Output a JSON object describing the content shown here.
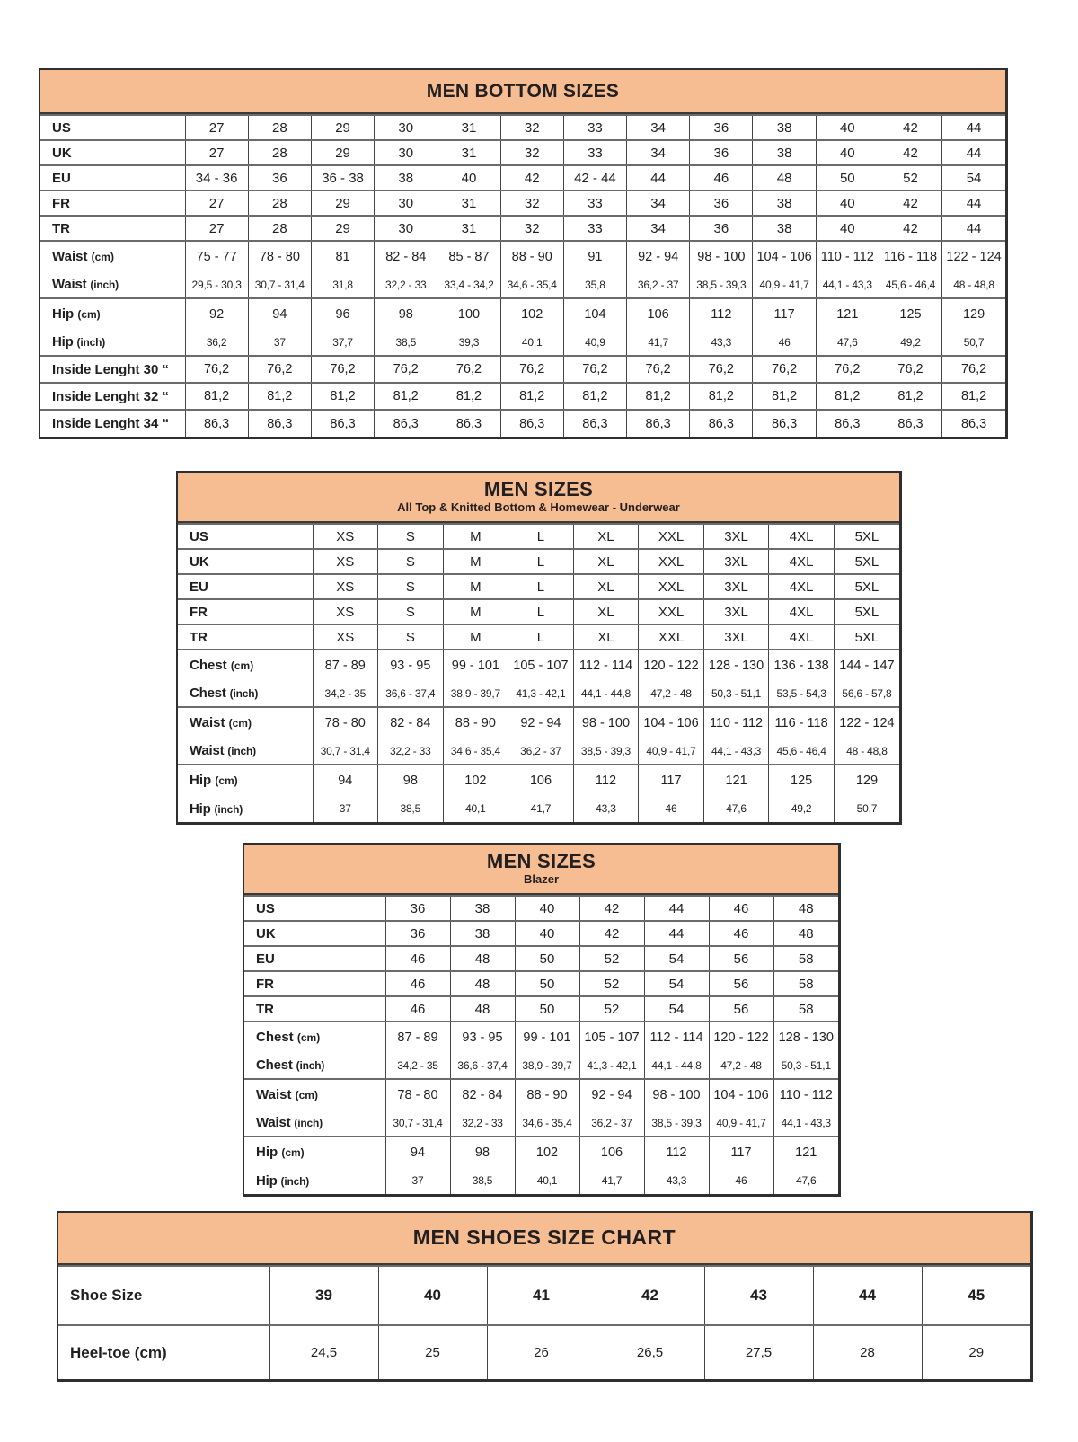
{
  "theme": {
    "header_bg": "#F6BD92",
    "text_color": "#1f1f1f",
    "grid_color": "#454545"
  },
  "tables": [
    {
      "name": "men-bottom-sizes",
      "title": "MEN BOTTOM SIZES",
      "subtitle": "",
      "rows": [
        {
          "label": "US",
          "unit": "",
          "kind": "size",
          "group": true,
          "values": [
            "27",
            "28",
            "29",
            "30",
            "31",
            "32",
            "33",
            "34",
            "36",
            "38",
            "40",
            "42",
            "44"
          ]
        },
        {
          "label": "UK",
          "unit": "",
          "kind": "size",
          "group": true,
          "values": [
            "27",
            "28",
            "29",
            "30",
            "31",
            "32",
            "33",
            "34",
            "36",
            "38",
            "40",
            "42",
            "44"
          ]
        },
        {
          "label": "EU",
          "unit": "",
          "kind": "size",
          "group": true,
          "values": [
            "34 - 36",
            "36",
            "36 - 38",
            "38",
            "40",
            "42",
            "42 - 44",
            "44",
            "46",
            "48",
            "50",
            "52",
            "54"
          ]
        },
        {
          "label": "FR",
          "unit": "",
          "kind": "size",
          "group": true,
          "values": [
            "27",
            "28",
            "29",
            "30",
            "31",
            "32",
            "33",
            "34",
            "36",
            "38",
            "40",
            "42",
            "44"
          ]
        },
        {
          "label": "TR",
          "unit": "",
          "kind": "size",
          "group": true,
          "values": [
            "27",
            "28",
            "29",
            "30",
            "31",
            "32",
            "33",
            "34",
            "36",
            "38",
            "40",
            "42",
            "44"
          ]
        },
        {
          "label": "Waist",
          "unit": "(cm)",
          "kind": "cm",
          "group": true,
          "values": [
            "75 - 77",
            "78 - 80",
            "81",
            "82 - 84",
            "85 - 87",
            "88 - 90",
            "91",
            "92 - 94",
            "98 - 100",
            "104 - 106",
            "110 - 112",
            "116 - 118",
            "122 - 124"
          ]
        },
        {
          "label": "Waist",
          "unit": "(inch)",
          "kind": "inch",
          "group": false,
          "values": [
            "29,5 - 30,3",
            "30,7 - 31,4",
            "31,8",
            "32,2 - 33",
            "33,4 - 34,2",
            "34,6 - 35,4",
            "35,8",
            "36,2 - 37",
            "38,5 - 39,3",
            "40,9 - 41,7",
            "44,1 - 43,3",
            "45,6 - 46,4",
            "48 - 48,8"
          ]
        },
        {
          "label": "Hip",
          "unit": "(cm)",
          "kind": "cm",
          "group": true,
          "values": [
            "92",
            "94",
            "96",
            "98",
            "100",
            "102",
            "104",
            "106",
            "112",
            "117",
            "121",
            "125",
            "129"
          ]
        },
        {
          "label": "Hip",
          "unit": "(inch)",
          "kind": "inch",
          "group": false,
          "values": [
            "36,2",
            "37",
            "37,7",
            "38,5",
            "39,3",
            "40,1",
            "40,9",
            "41,7",
            "43,3",
            "46",
            "47,6",
            "49,2",
            "50,7"
          ]
        },
        {
          "label": "Inside Lenght 30 “",
          "unit": "",
          "kind": "il",
          "group": true,
          "values": [
            "76,2",
            "76,2",
            "76,2",
            "76,2",
            "76,2",
            "76,2",
            "76,2",
            "76,2",
            "76,2",
            "76,2",
            "76,2",
            "76,2",
            "76,2"
          ]
        },
        {
          "label": "Inside Lenght 32 “",
          "unit": "",
          "kind": "il",
          "group": true,
          "values": [
            "81,2",
            "81,2",
            "81,2",
            "81,2",
            "81,2",
            "81,2",
            "81,2",
            "81,2",
            "81,2",
            "81,2",
            "81,2",
            "81,2",
            "81,2"
          ]
        },
        {
          "label": "Inside Lenght 34 “",
          "unit": "",
          "kind": "il",
          "group": true,
          "values": [
            "86,3",
            "86,3",
            "86,3",
            "86,3",
            "86,3",
            "86,3",
            "86,3",
            "86,3",
            "86,3",
            "86,3",
            "86,3",
            "86,3",
            "86,3"
          ]
        }
      ]
    },
    {
      "name": "men-sizes-top",
      "title": "MEN SIZES",
      "subtitle": "All Top & Knitted Bottom & Homewear - Underwear",
      "rows": [
        {
          "label": "US",
          "unit": "",
          "kind": "size",
          "group": true,
          "values": [
            "XS",
            "S",
            "M",
            "L",
            "XL",
            "XXL",
            "3XL",
            "4XL",
            "5XL"
          ]
        },
        {
          "label": "UK",
          "unit": "",
          "kind": "size",
          "group": true,
          "values": [
            "XS",
            "S",
            "M",
            "L",
            "XL",
            "XXL",
            "3XL",
            "4XL",
            "5XL"
          ]
        },
        {
          "label": "EU",
          "unit": "",
          "kind": "size",
          "group": true,
          "values": [
            "XS",
            "S",
            "M",
            "L",
            "XL",
            "XXL",
            "3XL",
            "4XL",
            "5XL"
          ]
        },
        {
          "label": "FR",
          "unit": "",
          "kind": "size",
          "group": true,
          "values": [
            "XS",
            "S",
            "M",
            "L",
            "XL",
            "XXL",
            "3XL",
            "4XL",
            "5XL"
          ]
        },
        {
          "label": "TR",
          "unit": "",
          "kind": "size",
          "group": true,
          "values": [
            "XS",
            "S",
            "M",
            "L",
            "XL",
            "XXL",
            "3XL",
            "4XL",
            "5XL"
          ]
        },
        {
          "label": "Chest",
          "unit": "(cm)",
          "kind": "cm",
          "group": true,
          "values": [
            "87 - 89",
            "93 - 95",
            "99 - 101",
            "105 - 107",
            "112 - 114",
            "120 - 122",
            "128 - 130",
            "136 - 138",
            "144 - 147"
          ]
        },
        {
          "label": "Chest",
          "unit": "(inch)",
          "kind": "inch",
          "group": false,
          "values": [
            "34,2 - 35",
            "36,6 - 37,4",
            "38,9 - 39,7",
            "41,3 - 42,1",
            "44,1 - 44,8",
            "47,2 - 48",
            "50,3 - 51,1",
            "53,5 - 54,3",
            "56,6 - 57,8"
          ]
        },
        {
          "label": "Waist",
          "unit": "(cm)",
          "kind": "cm",
          "group": true,
          "values": [
            "78 - 80",
            "82 - 84",
            "88 - 90",
            "92 - 94",
            "98 - 100",
            "104 - 106",
            "110 - 112",
            "116 - 118",
            "122 - 124"
          ]
        },
        {
          "label": "Waist",
          "unit": "(inch)",
          "kind": "inch",
          "group": false,
          "values": [
            "30,7 - 31,4",
            "32,2 - 33",
            "34,6 - 35,4",
            "36,2 - 37",
            "38,5 - 39,3",
            "40,9 - 41,7",
            "44,1 - 43,3",
            "45,6 - 46,4",
            "48 - 48,8"
          ]
        },
        {
          "label": "Hip",
          "unit": "(cm)",
          "kind": "cm",
          "group": true,
          "values": [
            "94",
            "98",
            "102",
            "106",
            "112",
            "117",
            "121",
            "125",
            "129"
          ]
        },
        {
          "label": "Hip",
          "unit": "(inch)",
          "kind": "inch",
          "group": false,
          "values": [
            "37",
            "38,5",
            "40,1",
            "41,7",
            "43,3",
            "46",
            "47,6",
            "49,2",
            "50,7"
          ]
        }
      ]
    },
    {
      "name": "men-sizes-blazer",
      "title": "MEN SIZES",
      "subtitle": "Blazer",
      "rows": [
        {
          "label": "US",
          "unit": "",
          "kind": "size",
          "group": true,
          "values": [
            "36",
            "38",
            "40",
            "42",
            "44",
            "46",
            "48"
          ]
        },
        {
          "label": "UK",
          "unit": "",
          "kind": "size",
          "group": true,
          "values": [
            "36",
            "38",
            "40",
            "42",
            "44",
            "46",
            "48"
          ]
        },
        {
          "label": "EU",
          "unit": "",
          "kind": "size",
          "group": true,
          "values": [
            "46",
            "48",
            "50",
            "52",
            "54",
            "56",
            "58"
          ]
        },
        {
          "label": "FR",
          "unit": "",
          "kind": "size",
          "group": true,
          "values": [
            "46",
            "48",
            "50",
            "52",
            "54",
            "56",
            "58"
          ]
        },
        {
          "label": "TR",
          "unit": "",
          "kind": "size",
          "group": true,
          "values": [
            "46",
            "48",
            "50",
            "52",
            "54",
            "56",
            "58"
          ]
        },
        {
          "label": "Chest",
          "unit": "(cm)",
          "kind": "cm",
          "group": true,
          "values": [
            "87 - 89",
            "93 - 95",
            "99 - 101",
            "105 - 107",
            "112 - 114",
            "120 - 122",
            "128 - 130"
          ]
        },
        {
          "label": "Chest",
          "unit": "(inch)",
          "kind": "inch",
          "group": false,
          "values": [
            "34,2 - 35",
            "36,6 - 37,4",
            "38,9 - 39,7",
            "41,3 - 42,1",
            "44,1 - 44,8",
            "47,2 - 48",
            "50,3 - 51,1"
          ]
        },
        {
          "label": "Waist",
          "unit": "(cm)",
          "kind": "cm",
          "group": true,
          "values": [
            "78 - 80",
            "82 - 84",
            "88 - 90",
            "92 - 94",
            "98 - 100",
            "104 - 106",
            "110 - 112"
          ]
        },
        {
          "label": "Waist",
          "unit": "(inch)",
          "kind": "inch",
          "group": false,
          "values": [
            "30,7 - 31,4",
            "32,2 - 33",
            "34,6 - 35,4",
            "36,2 - 37",
            "38,5 - 39,3",
            "40,9 - 41,7",
            "44,1 - 43,3"
          ]
        },
        {
          "label": "Hip",
          "unit": "(cm)",
          "kind": "cm",
          "group": true,
          "values": [
            "94",
            "98",
            "102",
            "106",
            "112",
            "117",
            "121"
          ]
        },
        {
          "label": "Hip",
          "unit": "(inch)",
          "kind": "inch",
          "group": false,
          "values": [
            "37",
            "38,5",
            "40,1",
            "41,7",
            "43,3",
            "46",
            "47,6"
          ]
        }
      ]
    },
    {
      "name": "men-shoes-size-chart",
      "title": "MEN SHOES SIZE CHART",
      "subtitle": "",
      "rows": [
        {
          "label": "Shoe Size",
          "unit": "",
          "kind": "shoe",
          "group": true,
          "values": [
            "39",
            "40",
            "41",
            "42",
            "43",
            "44",
            "45"
          ]
        },
        {
          "label": "Heel-toe (cm)",
          "unit": "",
          "kind": "heel",
          "group": true,
          "values": [
            "24,5",
            "25",
            "26",
            "26,5",
            "27,5",
            "28",
            "29"
          ]
        }
      ]
    }
  ]
}
